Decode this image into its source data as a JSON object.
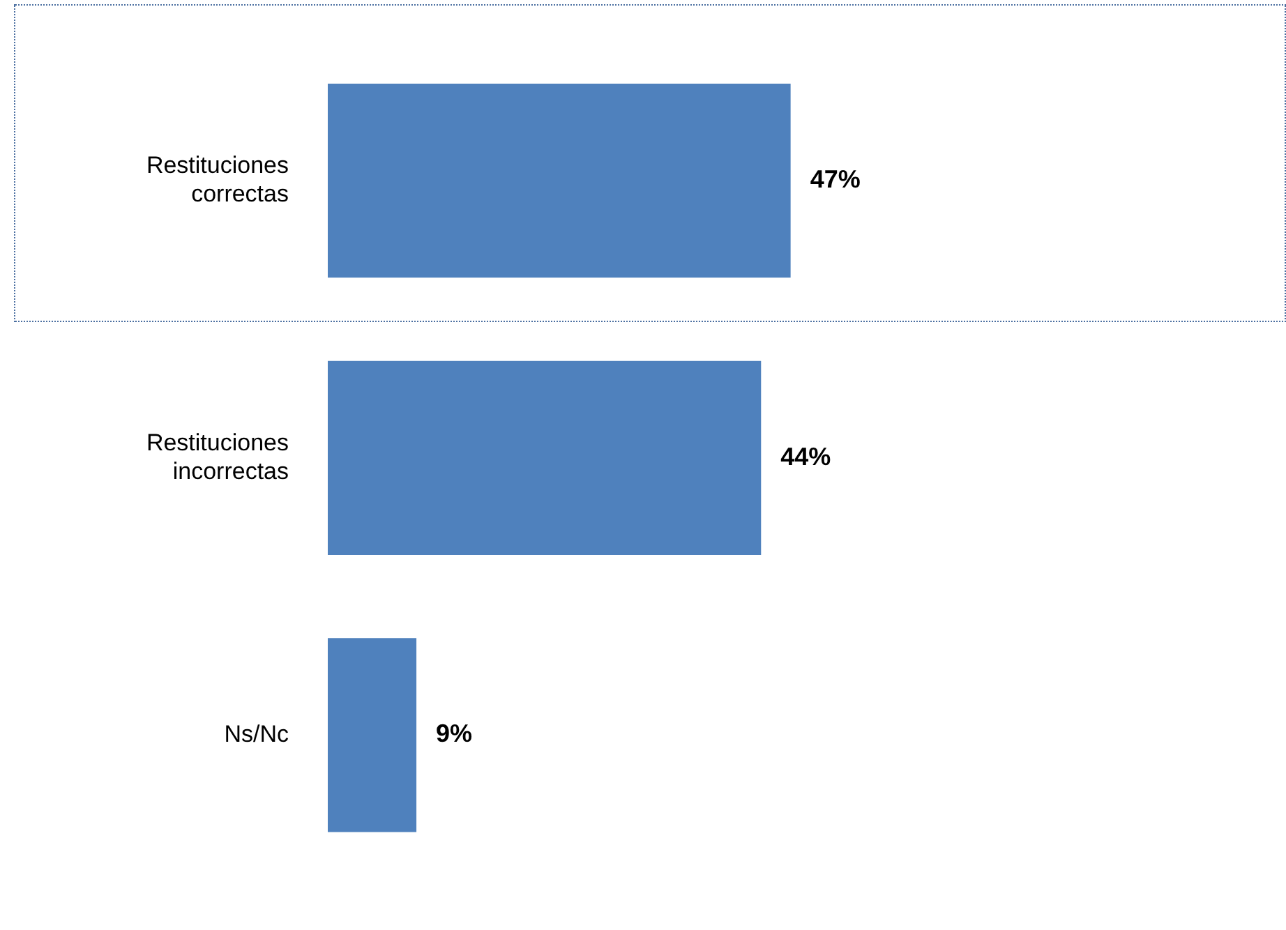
{
  "chart_data": {
    "type": "bar",
    "orientation": "horizontal",
    "categories": [
      "Restituciones correctas",
      "Restituciones incorrectas",
      "Ns/Nc"
    ],
    "values": [
      47,
      44,
      9
    ],
    "color": "#4f81bd",
    "data_labels": true,
    "value_labels": [
      "47%",
      "44%",
      "9%"
    ]
  }
}
